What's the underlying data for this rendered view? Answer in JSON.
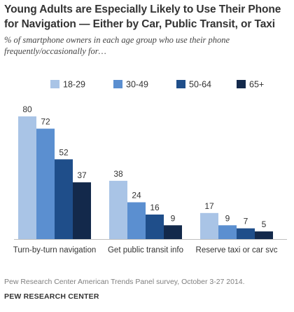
{
  "title": "Young Adults are Especially Likely to Use Their Phone for Navigation — Either by Car, Public Transit, or Taxi",
  "subtitle": "% of smartphone owners in each age group who use their phone frequently/occasionally for…",
  "footer": {
    "source": "Pew Research Center American Trends Panel survey, October 3-27 2014.",
    "org": "PEW RESEARCH CENTER"
  },
  "chart_data": {
    "type": "bar",
    "categories": [
      "Turn-by-turn navigation",
      "Get public transit info",
      "Reserve taxi or car svc"
    ],
    "series": [
      {
        "name": "18-29",
        "values": [
          80,
          38,
          17
        ],
        "color": "#a9c4e6"
      },
      {
        "name": "30-49",
        "values": [
          72,
          24,
          9
        ],
        "color": "#5b8fd0"
      },
      {
        "name": "50-64",
        "values": [
          52,
          16,
          7
        ],
        "color": "#1f4e8a"
      },
      {
        "name": "65+",
        "values": [
          37,
          9,
          5
        ],
        "color": "#13294b"
      }
    ],
    "ylim": [
      0,
      80
    ],
    "legend_position": "top",
    "grid": false,
    "data_labels": true
  }
}
